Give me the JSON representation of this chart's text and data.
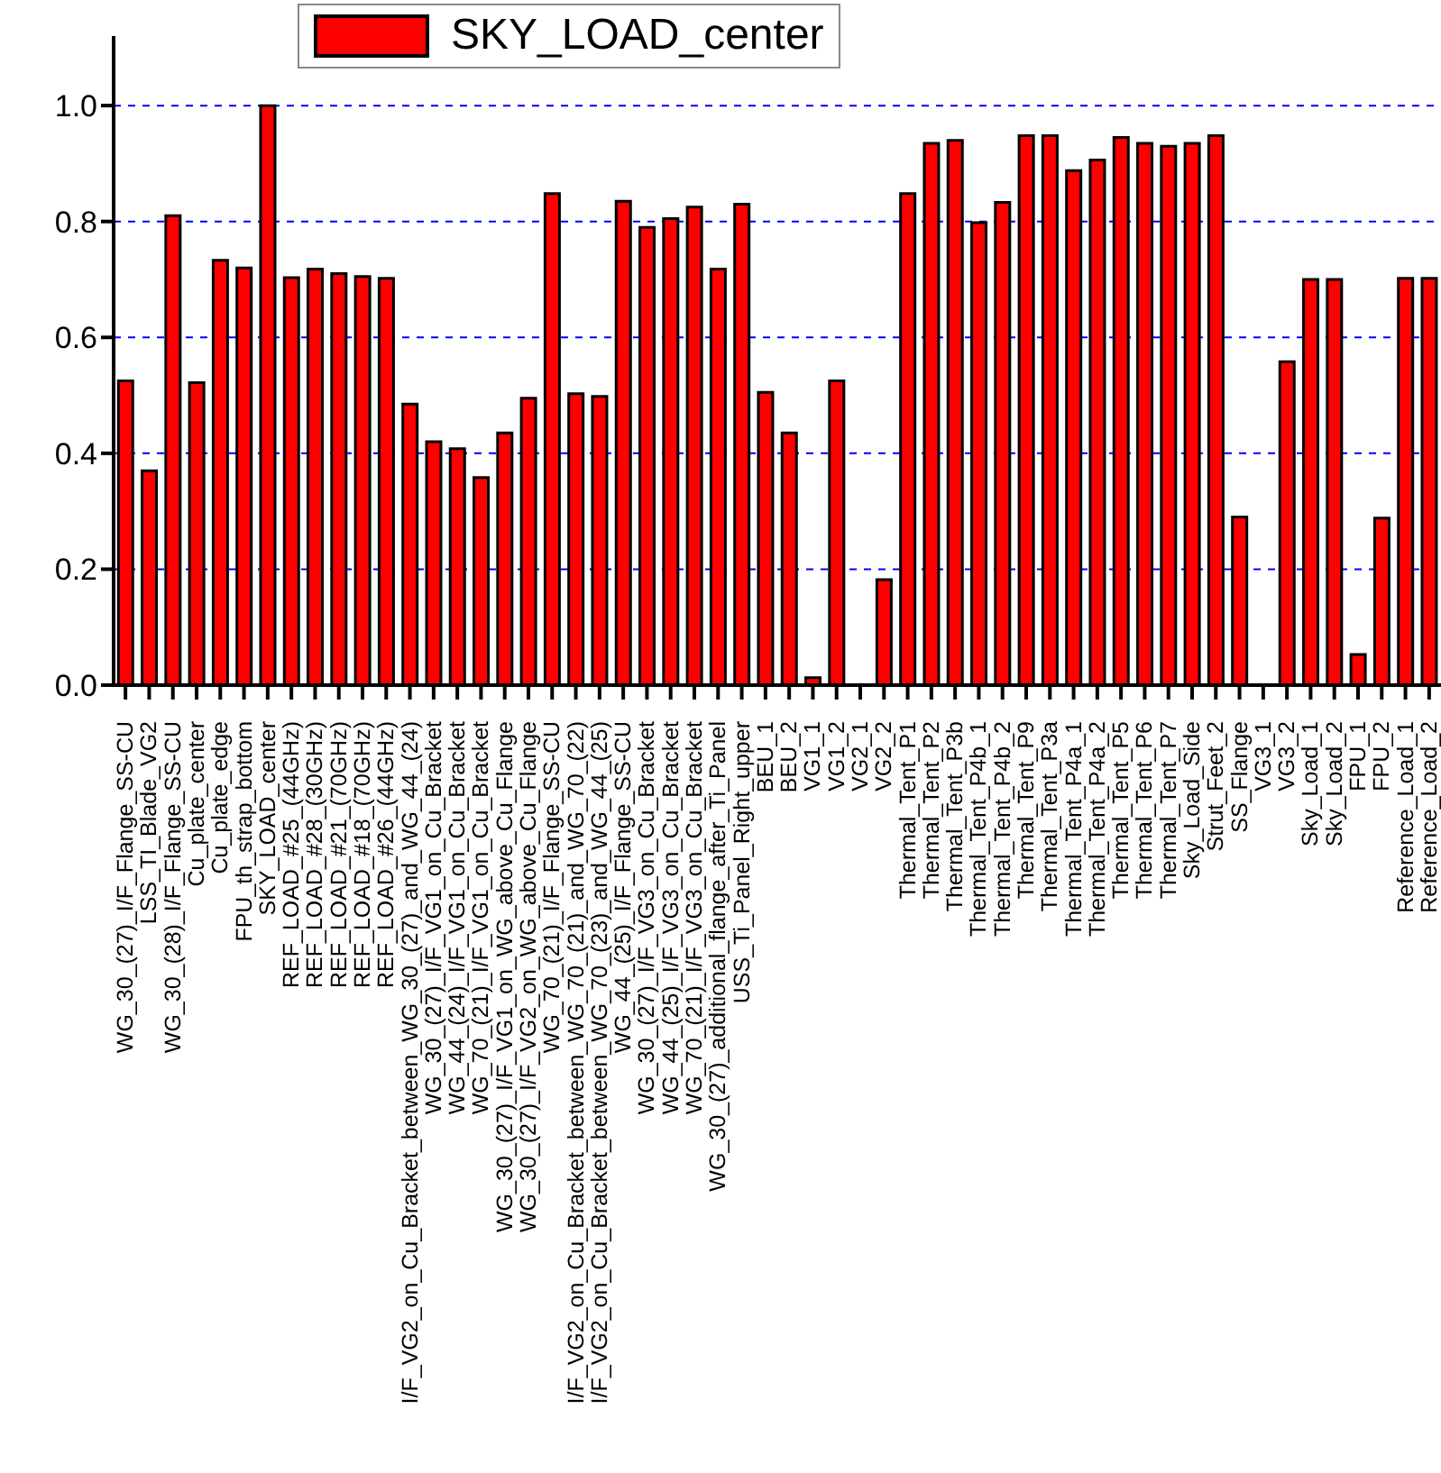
{
  "chart_data": {
    "type": "bar",
    "categories": [
      "WG_30_(27)_I/F_Flange_SS-CU",
      "LSS_TI_Blade_VG2",
      "WG_30_(28)_I/F_Flange_SS-CU",
      "Cu_plate_center",
      "Cu_plate_edge",
      "FPU_th_strap_bottom",
      "SKY_LOAD_center",
      "REF_LOAD_#25_(44GHz)",
      "REF_LOAD_#28_(30GHz)",
      "REF_LOAD_#21_(70GHz)",
      "REF_LOAD_#18_(70GHz)",
      "REF_LOAD_#26_(44GHz)",
      "I/F_VG2_on_Cu_Bracket_between_WG_30_(27)_and_WG_44_(24)",
      "WG_30_(27)_I/F_VG1_on_Cu_Bracket",
      "WG_44_(24)_I/F_VG1_on_Cu_Bracket",
      "WG_70_(21)_I/F_VG1_on_Cu_Bracket",
      "WG_30_(27)_I/F_VG1_on_WG_above_Cu_Flange",
      "WG_30_(27)_I/F_VG2_on_WG_above_Cu_Flange",
      "WG_70_(21)_I/F_Flange_SS-CU",
      "I/F_VG2_on_Cu_Bracket_between_WG_70_(21)_and_WG_70_(22)",
      "I/F_VG2_on_Cu_Bracket_between_WG_70_(23)_and_WG_44_(25)",
      "WG_44_(25)_I/F_Flange_SS-CU",
      "WG_30_(27)_I/F_VG3_on_Cu_Bracket",
      "WG_44_(25)_I/F_VG3_on_Cu_Bracket",
      "WG_70_(21)_I/F_VG3_on_Cu_Bracket",
      "WG_30_(27)_additional_flange_after_Ti_Panel",
      "USS_Ti_Panel_Right_upper",
      "BEU_1",
      "BEU_2",
      "VG1_1",
      "VG1_2",
      "VG2_1",
      "VG2_2",
      "Thermal_Tent_P1",
      "Thermal_Tent_P2",
      "Thermal_Tent_P3b",
      "Thermal_Tent_P4b_1",
      "Thermal_Tent_P4b_2",
      "Thermal_Tent_P9",
      "Thermal_Tent_P3a",
      "Thermal_Tent_P4a_1",
      "Thermal_Tent_P4a_2",
      "Thermal_Tent_P5",
      "Thermal_Tent_P6",
      "Thermal_Tent_P7",
      "Sky_Load_Side",
      "Strut_Feet_2",
      "SS_Flange",
      "VG3_1",
      "VG3_2",
      "Sky_Load_1",
      "Sky_Load_2",
      "FPU_1",
      "FPU_2",
      "Reference_Load_1",
      "Reference_Load_2"
    ],
    "series": [
      {
        "name": "SKY_LOAD_center",
        "color": "#ff0000",
        "values": [
          0.525,
          0.37,
          0.81,
          0.522,
          0.733,
          0.72,
          1.0,
          0.703,
          0.718,
          0.71,
          0.705,
          0.702,
          0.485,
          0.42,
          0.408,
          0.358,
          0.435,
          0.495,
          0.848,
          0.503,
          0.498,
          0.835,
          0.79,
          0.805,
          0.825,
          0.718,
          0.83,
          0.505,
          0.435,
          0.013,
          0.525,
          null,
          0.182,
          0.848,
          0.935,
          0.94,
          0.798,
          0.833,
          0.948,
          0.948,
          0.888,
          0.906,
          0.945,
          0.935,
          0.93,
          0.935,
          0.948,
          0.29,
          null,
          0.558,
          0.7,
          0.7,
          0.053,
          0.288,
          0.702,
          0.702
        ]
      }
    ],
    "ylim": [
      0,
      1.12
    ],
    "yticks": [
      {
        "value": 0,
        "label": "0.0"
      },
      0.2,
      0.4,
      0.6,
      0.8,
      {
        "value": 1,
        "label": "1.0"
      }
    ],
    "grid": "y",
    "legend": "top",
    "line_style": "dashed"
  }
}
